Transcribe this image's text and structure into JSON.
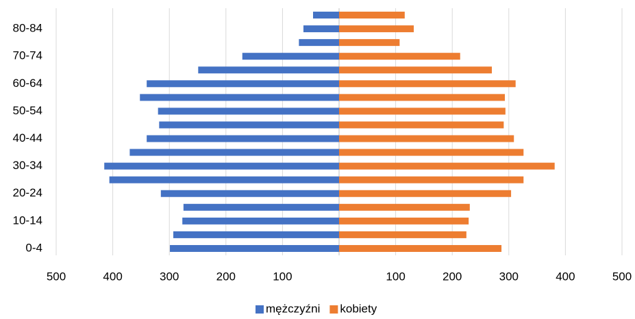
{
  "chart_data": {
    "type": "pyramid",
    "categories": [
      "0-4",
      null,
      "10-14",
      null,
      "20-24",
      null,
      "30-34",
      null,
      "40-44",
      null,
      "50-54",
      null,
      "60-64",
      null,
      "70-74",
      null,
      "80-84",
      null
    ],
    "series": [
      {
        "name": "mężczyźni",
        "color": "#4472c4",
        "values": [
          -299,
          -293,
          -277,
          -275,
          -315,
          -406,
          -415,
          -370,
          -340,
          -318,
          -320,
          -352,
          -340,
          -249,
          -171,
          -71,
          -63,
          -46
        ]
      },
      {
        "name": "kobiety",
        "color": "#ed7d31",
        "values": [
          287,
          225,
          229,
          231,
          304,
          326,
          381,
          326,
          309,
          291,
          294,
          293,
          312,
          270,
          214,
          107,
          132,
          116
        ]
      }
    ],
    "xlim": [
      -500,
      500
    ],
    "xticks": [
      {
        "value": -500,
        "label": "500"
      },
      {
        "value": -400,
        "label": "400"
      },
      {
        "value": -300,
        "label": "300"
      },
      {
        "value": -200,
        "label": "200"
      },
      {
        "value": -100,
        "label": "100"
      },
      100,
      200,
      300,
      400,
      500
    ],
    "grid": true,
    "legend": "bottom"
  }
}
